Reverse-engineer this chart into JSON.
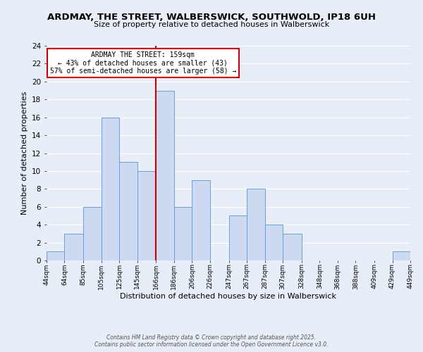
{
  "title": "ARDMAY, THE STREET, WALBERSWICK, SOUTHWOLD, IP18 6UH",
  "subtitle": "Size of property relative to detached houses in Walberswick",
  "xlabel": "Distribution of detached houses by size in Walberswick",
  "ylabel": "Number of detached properties",
  "bin_edges": [
    44,
    64,
    85,
    105,
    125,
    145,
    166,
    186,
    206,
    226,
    247,
    267,
    287,
    307,
    328,
    348,
    368,
    388,
    409,
    429,
    449
  ],
  "bar_heights": [
    1,
    3,
    6,
    16,
    11,
    10,
    19,
    6,
    9,
    0,
    5,
    8,
    4,
    3,
    0,
    0,
    0,
    0,
    0,
    1
  ],
  "bar_color": "#ccd9f0",
  "bar_edge_color": "#6a9fd8",
  "vline_x": 166,
  "vline_color": "#cc0000",
  "ylim": [
    0,
    24
  ],
  "yticks": [
    0,
    2,
    4,
    6,
    8,
    10,
    12,
    14,
    16,
    18,
    20,
    22,
    24
  ],
  "annotation_title": "ARDMAY THE STREET: 159sqm",
  "annotation_line1": "← 43% of detached houses are smaller (43)",
  "annotation_line2": "57% of semi-detached houses are larger (58) →",
  "annotation_box_color": "#ffffff",
  "annotation_box_edge": "#cc0000",
  "footer_line1": "Contains HM Land Registry data © Crown copyright and database right 2025.",
  "footer_line2": "Contains public sector information licensed under the Open Government Licence v3.0.",
  "background_color": "#e8eef8",
  "grid_color": "#ffffff",
  "tick_labels": [
    "44sqm",
    "64sqm",
    "85sqm",
    "105sqm",
    "125sqm",
    "145sqm",
    "166sqm",
    "186sqm",
    "206sqm",
    "226sqm",
    "247sqm",
    "267sqm",
    "287sqm",
    "307sqm",
    "328sqm",
    "348sqm",
    "368sqm",
    "388sqm",
    "409sqm",
    "429sqm",
    "449sqm"
  ]
}
